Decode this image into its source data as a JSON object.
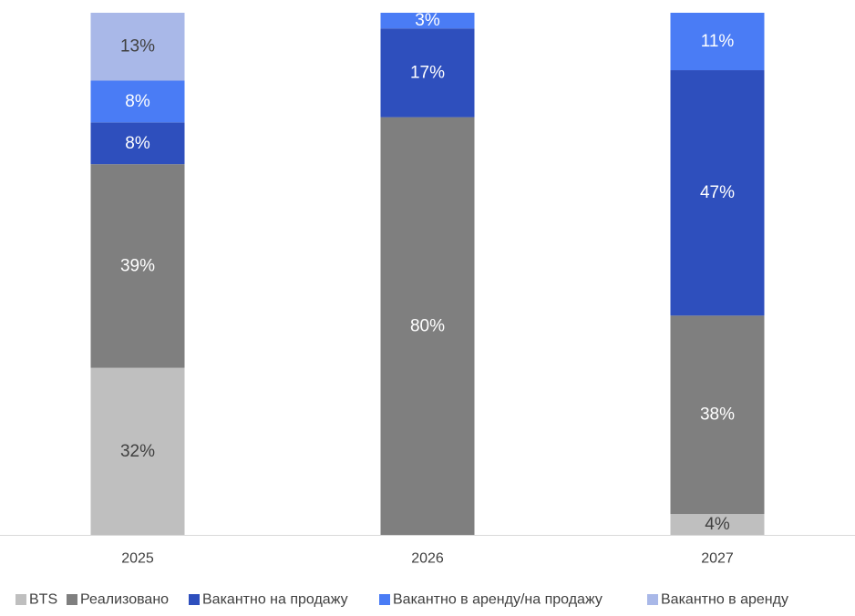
{
  "chart_data": {
    "type": "bar",
    "stacked": true,
    "percent_stacked": true,
    "categories": [
      "2025",
      "2026",
      "2027"
    ],
    "series": [
      {
        "name": "BTS",
        "values": [
          32,
          0,
          4
        ],
        "labels": [
          "32%",
          "",
          "4%"
        ],
        "color": "#BFBFBF",
        "label_color": "#404040"
      },
      {
        "name": "Реализовано",
        "values": [
          39,
          80,
          38
        ],
        "labels": [
          "39%",
          "80%",
          "38%"
        ],
        "color": "#7F7F7F",
        "label_color": "#FFFFFF"
      },
      {
        "name": "Вакантно на продажу",
        "values": [
          8,
          17,
          47
        ],
        "labels": [
          "8%",
          "17%",
          "47%"
        ],
        "color": "#2E4FBD",
        "label_color": "#FFFFFF"
      },
      {
        "name": "Вакантно в аренду/на продажу",
        "values": [
          8,
          3,
          11
        ],
        "labels": [
          "8%",
          "3%",
          "11%"
        ],
        "color": "#4A7CF5",
        "label_color": "#FFFFFF"
      },
      {
        "name": "Вакантно в аренду",
        "values": [
          13,
          0,
          0
        ],
        "labels": [
          "13%",
          "",
          ""
        ],
        "color": "#A9B8E8",
        "label_color": "#404040"
      }
    ],
    "ylim": [
      0,
      100
    ],
    "grid": false,
    "legend_position": "bottom",
    "title": "",
    "xlabel": "",
    "ylabel": ""
  }
}
